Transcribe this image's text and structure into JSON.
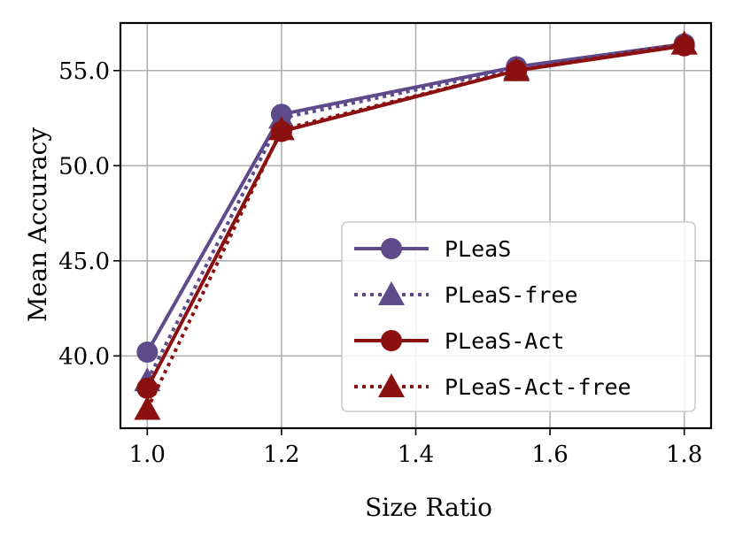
{
  "chart_data": {
    "type": "line",
    "title": "",
    "xlabel": "Size Ratio",
    "ylabel": "Mean Accuracy",
    "xlim": [
      0.96,
      1.84
    ],
    "ylim": [
      36.2,
      57.5
    ],
    "xticks": [
      1.0,
      1.2,
      1.4,
      1.6,
      1.8
    ],
    "xtick_labels": [
      "1.0",
      "1.2",
      "1.4",
      "1.6",
      "1.8"
    ],
    "yticks": [
      40.0,
      45.0,
      50.0,
      55.0
    ],
    "ytick_labels": [
      "40.0",
      "45.0",
      "50.0",
      "55.0"
    ],
    "grid": true,
    "legend_position": "lower-right",
    "x": [
      1.0,
      1.2,
      1.55,
      1.8
    ],
    "series": [
      {
        "name": "PLeaS",
        "values": [
          40.2,
          52.7,
          55.2,
          56.4
        ],
        "color": "#5e4b8b",
        "linestyle": "solid",
        "marker": "circle"
      },
      {
        "name": "PLeaS-free",
        "values": [
          38.7,
          52.5,
          55.1,
          56.4
        ],
        "color": "#5e4b8b",
        "linestyle": "dotted",
        "marker": "triangle"
      },
      {
        "name": "PLeaS-Act",
        "values": [
          38.3,
          51.8,
          55.0,
          56.3
        ],
        "color": "#8b1111",
        "linestyle": "solid",
        "marker": "circle"
      },
      {
        "name": "PLeaS-Act-free",
        "values": [
          37.2,
          51.9,
          55.0,
          56.4
        ],
        "color": "#8b1111",
        "linestyle": "dotted",
        "marker": "triangle"
      }
    ]
  }
}
